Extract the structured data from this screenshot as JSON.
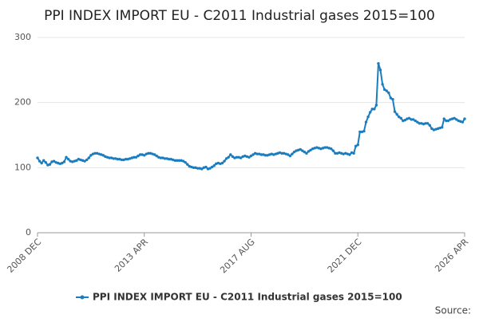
{
  "chart_data": {
    "type": "line",
    "title": "PPI INDEX IMPORT EU - C2011 Industrial gases 2015=100",
    "source": "Source:",
    "categories": [
      "2008 DEC",
      null,
      null,
      null,
      null,
      null,
      null,
      null,
      null,
      null,
      null,
      null,
      null,
      null,
      null,
      null,
      null,
      null,
      null,
      null,
      null,
      null,
      null,
      null,
      null,
      null,
      null,
      null,
      null,
      null,
      null,
      null,
      null,
      null,
      null,
      null,
      null,
      null,
      null,
      null,
      null,
      null,
      null,
      null,
      null,
      null,
      null,
      null,
      null,
      null,
      null,
      null,
      "2013 APR",
      null,
      null,
      null,
      null,
      null,
      null,
      null,
      null,
      null,
      null,
      null,
      null,
      null,
      null,
      null,
      null,
      null,
      null,
      null,
      null,
      null,
      null,
      null,
      null,
      null,
      null,
      null,
      null,
      null,
      null,
      null,
      null,
      null,
      null,
      null,
      null,
      null,
      null,
      null,
      null,
      null,
      null,
      null,
      null,
      null,
      null,
      null,
      null,
      null,
      null,
      null,
      "2017 AUG",
      null,
      null,
      null,
      null,
      null,
      null,
      null,
      null,
      null,
      null,
      null,
      null,
      null,
      null,
      null,
      null,
      null,
      null,
      null,
      null,
      null,
      null,
      null,
      null,
      null,
      null,
      null,
      null,
      null,
      null,
      null,
      null,
      null,
      null,
      null,
      null,
      null,
      null,
      null,
      null,
      null,
      null,
      null,
      null,
      null,
      null,
      null,
      null,
      null,
      null,
      null,
      "2021 DEC",
      null,
      null,
      null,
      null,
      null,
      null,
      null,
      null,
      null,
      null,
      null,
      null,
      null,
      null,
      null,
      null,
      null,
      null,
      null,
      null,
      null,
      null,
      null,
      null,
      null,
      null,
      null,
      null,
      null,
      null,
      null,
      null,
      null,
      null,
      null,
      null,
      null,
      null,
      null,
      null,
      null,
      null,
      null,
      null,
      null,
      null,
      null,
      null,
      null,
      null,
      null,
      "2026 APR"
    ],
    "series": [
      {
        "name": "PPI INDEX IMPORT EU - C2011 Industrial gases 2015=100",
        "color": "#1a7dc0",
        "values": [
          115,
          110,
          107,
          111,
          108,
          104,
          105,
          109,
          110,
          108,
          107,
          106,
          107,
          109,
          116,
          113,
          110,
          109,
          110,
          111,
          113,
          112,
          111,
          110,
          112,
          115,
          119,
          121,
          122,
          122,
          121,
          120,
          119,
          117,
          116,
          115,
          115,
          114,
          114,
          113,
          113,
          112,
          112,
          113,
          113,
          114,
          115,
          116,
          116,
          118,
          120,
          120,
          119,
          121,
          122,
          122,
          121,
          120,
          118,
          116,
          115,
          115,
          114,
          114,
          113,
          113,
          112,
          111,
          111,
          111,
          111,
          110,
          108,
          105,
          102,
          101,
          100,
          100,
          99,
          99,
          98,
          100,
          101,
          98,
          99,
          101,
          103,
          106,
          107,
          106,
          107,
          110,
          114,
          116,
          120,
          117,
          115,
          116,
          116,
          115,
          117,
          118,
          117,
          116,
          118,
          120,
          122,
          121,
          121,
          120,
          120,
          119,
          119,
          120,
          121,
          120,
          121,
          122,
          123,
          122,
          122,
          121,
          120,
          118,
          121,
          124,
          126,
          127,
          128,
          126,
          124,
          122,
          125,
          127,
          129,
          130,
          131,
          130,
          129,
          130,
          131,
          131,
          130,
          129,
          126,
          122,
          122,
          123,
          122,
          121,
          122,
          121,
          120,
          123,
          122,
          133,
          135,
          155,
          155,
          156,
          170,
          178,
          185,
          190,
          190,
          196,
          260,
          250,
          228,
          220,
          218,
          215,
          207,
          205,
          186,
          182,
          178,
          176,
          172,
          173,
          175,
          176,
          174,
          174,
          172,
          170,
          168,
          168,
          167,
          168,
          168,
          165,
          160,
          158,
          159,
          160,
          161,
          162,
          175,
          172,
          172,
          174,
          175,
          176,
          174,
          172,
          171,
          170,
          175
        ]
      }
    ],
    "ylim": [
      0,
      300
    ],
    "yticks": [
      0,
      100,
      200,
      300
    ],
    "grid": true
  }
}
